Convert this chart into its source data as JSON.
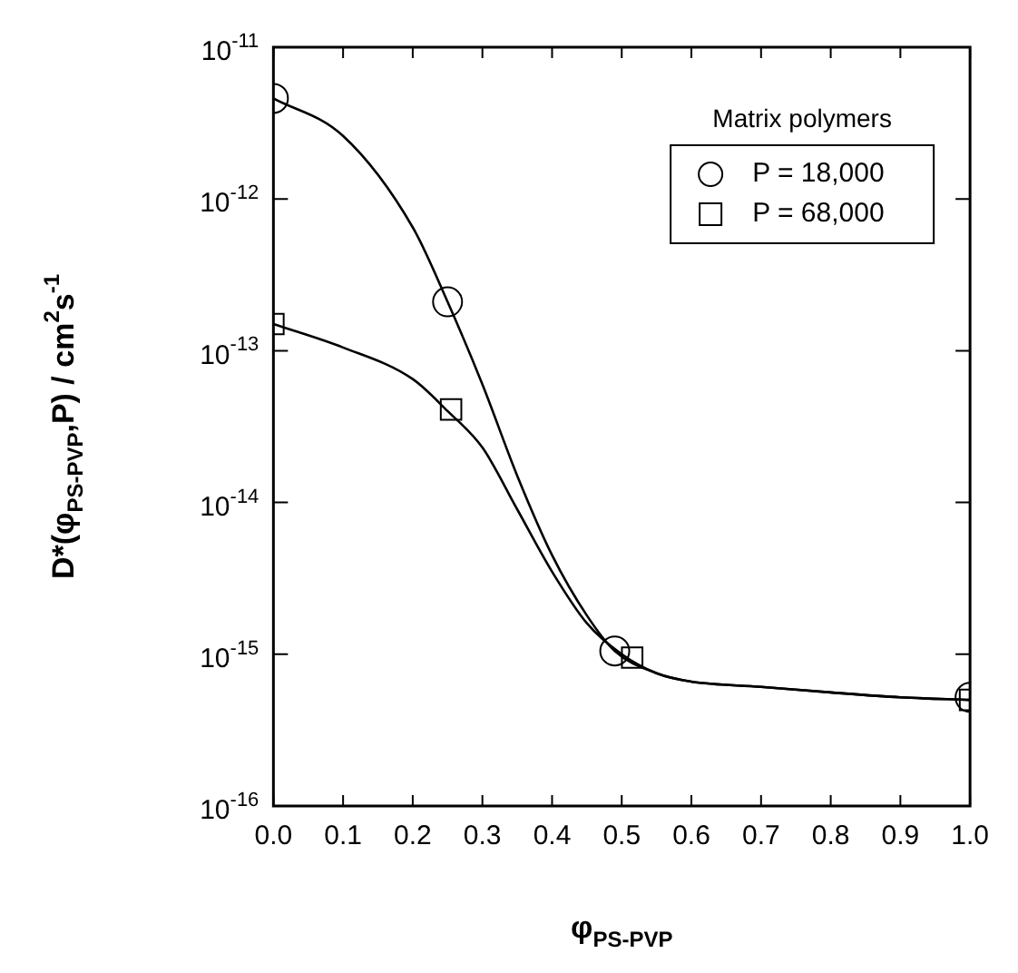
{
  "chart_data": {
    "type": "scatter",
    "xlabel": "φ$_{PS-PVP}$",
    "ylabel": "D*(φ$_{PS-PVP}$,P) / cm$^{2}$s$^{-1}$",
    "legend_title": "Matrix polymers",
    "legend": "top right",
    "log": "y",
    "grid": false,
    "xlim": [
      0,
      1.0
    ],
    "xticks": [
      {
        "value": 0,
        "label": "0.0"
      },
      0.1,
      0.2,
      0.3,
      0.4,
      0.5,
      0.6,
      0.7,
      0.8,
      0.9,
      {
        "value": 1,
        "label": "1.0"
      }
    ],
    "ylim": [
      1e-16,
      1e-11
    ],
    "yticks": [
      {
        "value": 1e-16,
        "label": "10$^{-16}$"
      },
      {
        "value": 1e-15,
        "label": "10$^{-15}$"
      },
      {
        "value": 1e-14,
        "label": "10$^{-14}$"
      },
      {
        "value": 1e-13,
        "label": "10$^{-13}$"
      },
      {
        "value": 1e-12,
        "label": "10$^{-12}$"
      },
      {
        "value": 1e-11,
        "label": "10$^{-11}$"
      }
    ],
    "series": [
      {
        "name": "P = 18,000",
        "color": "#000000",
        "marker": "circle",
        "x": [
          0,
          0.25,
          0.49,
          1.0
        ],
        "values": [
          4.6e-12,
          2.1e-13,
          1.05e-15,
          5.2e-16
        ]
      },
      {
        "name": "P = 68,000",
        "color": "#000000",
        "marker": "square",
        "x": [
          0,
          0.255,
          0.515,
          1.0
        ],
        "values": [
          1.5e-13,
          4.1e-14,
          9.5e-16,
          5e-16
        ]
      },
      {
        "type": "line",
        "color": "#000000",
        "marker": "none",
        "x": [
          0,
          0.1,
          0.2,
          0.25,
          0.3,
          0.35,
          0.4,
          0.45,
          0.49,
          0.55,
          0.6,
          0.7,
          0.8,
          0.9,
          1.0
        ],
        "values": [
          4.6e-12,
          2.6e-12,
          6.5e-13,
          2.1e-13,
          6e-14,
          1.5e-14,
          4.5e-15,
          1.8e-15,
          1.05e-15,
          7.5e-16,
          6.6e-16,
          6.1e-16,
          5.6e-16,
          5.2e-16,
          5e-16
        ]
      },
      {
        "type": "line",
        "color": "#000000",
        "marker": "none",
        "x": [
          0,
          0.1,
          0.2,
          0.25,
          0.3,
          0.35,
          0.4,
          0.45,
          0.5,
          0.55,
          0.6,
          0.7,
          0.8,
          0.9,
          1.0
        ],
        "values": [
          1.5e-13,
          1.05e-13,
          6.5e-14,
          4e-14,
          2.3e-14,
          9e-15,
          3.5e-15,
          1.6e-15,
          1e-15,
          7.5e-16,
          6.6e-16,
          6.1e-16,
          5.6e-16,
          5.2e-16,
          5e-16
        ]
      }
    ]
  }
}
